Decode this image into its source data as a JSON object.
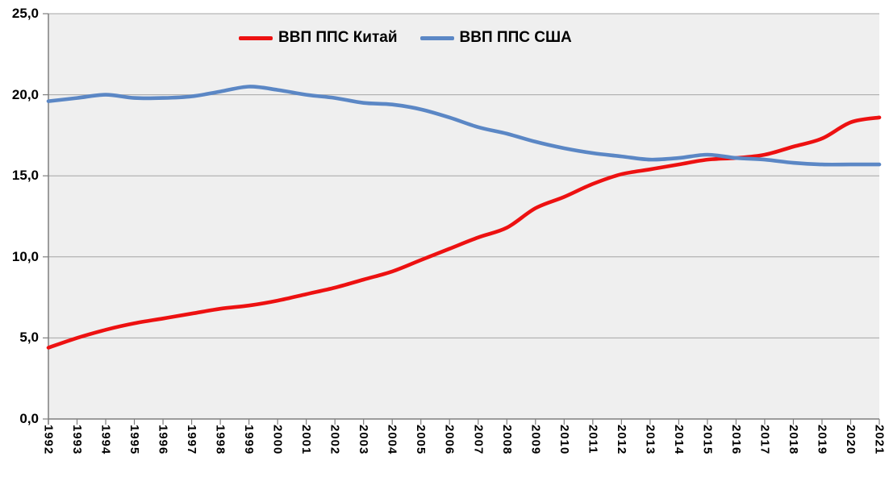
{
  "chart": {
    "legend": [
      {
        "label": "ВВП ППС Китай",
        "color": "#ED1111"
      },
      {
        "label": "ВВП ППС США",
        "color": "#5B87C5"
      }
    ],
    "y_axis": [
      {
        "value": 0,
        "label": "0,0"
      },
      {
        "value": 5,
        "label": "5,0"
      },
      {
        "value": 10,
        "label": "10,0"
      },
      {
        "value": 15,
        "label": "15,0"
      },
      {
        "value": 20,
        "label": "20,0"
      },
      {
        "value": 25,
        "label": "25,0"
      }
    ],
    "x_labels": [
      "1992",
      "1993",
      "1994",
      "1995",
      "1996",
      "1997",
      "1998",
      "1999",
      "2000",
      "2001",
      "2002",
      "2003",
      "2004",
      "2005",
      "2006",
      "2007",
      "2008",
      "2009",
      "2010",
      "2011",
      "2012",
      "2013",
      "2014",
      "2015",
      "2016",
      "2017",
      "2018",
      "2019",
      "2020",
      "2021"
    ],
    "colors": {
      "plot_background": "#EFEFEF",
      "gridline": "#A6A6A6",
      "axis": "#7F7F7F",
      "text": "#000000"
    }
  },
  "chart_data": {
    "type": "line",
    "x": [
      1992,
      1993,
      1994,
      1995,
      1996,
      1997,
      1998,
      1999,
      2000,
      2001,
      2002,
      2003,
      2004,
      2005,
      2006,
      2007,
      2008,
      2009,
      2010,
      2011,
      2012,
      2013,
      2014,
      2015,
      2016,
      2017,
      2018,
      2019,
      2020,
      2021
    ],
    "series": [
      {
        "name": "ВВП ППС Китай",
        "color": "#ED1111",
        "values": [
          4.4,
          5.0,
          5.5,
          5.9,
          6.2,
          6.5,
          6.8,
          7.0,
          7.3,
          7.7,
          8.1,
          8.6,
          9.1,
          9.8,
          10.5,
          11.2,
          11.8,
          13.0,
          13.7,
          14.5,
          15.1,
          15.4,
          15.7,
          16.0,
          16.1,
          16.3,
          16.8,
          17.3,
          18.3,
          18.6
        ]
      },
      {
        "name": "ВВП ППС США",
        "color": "#5B87C5",
        "values": [
          19.6,
          19.8,
          20.0,
          19.8,
          19.8,
          19.9,
          20.2,
          20.5,
          20.3,
          20.0,
          19.8,
          19.5,
          19.4,
          19.1,
          18.6,
          18.0,
          17.6,
          17.1,
          16.7,
          16.4,
          16.2,
          16.0,
          16.1,
          16.3,
          16.1,
          16.0,
          15.8,
          15.7,
          15.7,
          15.7
        ]
      }
    ],
    "title": "",
    "xlabel": "",
    "ylabel": "",
    "ylim": [
      0,
      25
    ],
    "y_ticks": [
      0,
      5,
      10,
      15,
      20,
      25
    ],
    "grid": true,
    "legend_position": "top-center",
    "number_format": "comma-decimal"
  }
}
